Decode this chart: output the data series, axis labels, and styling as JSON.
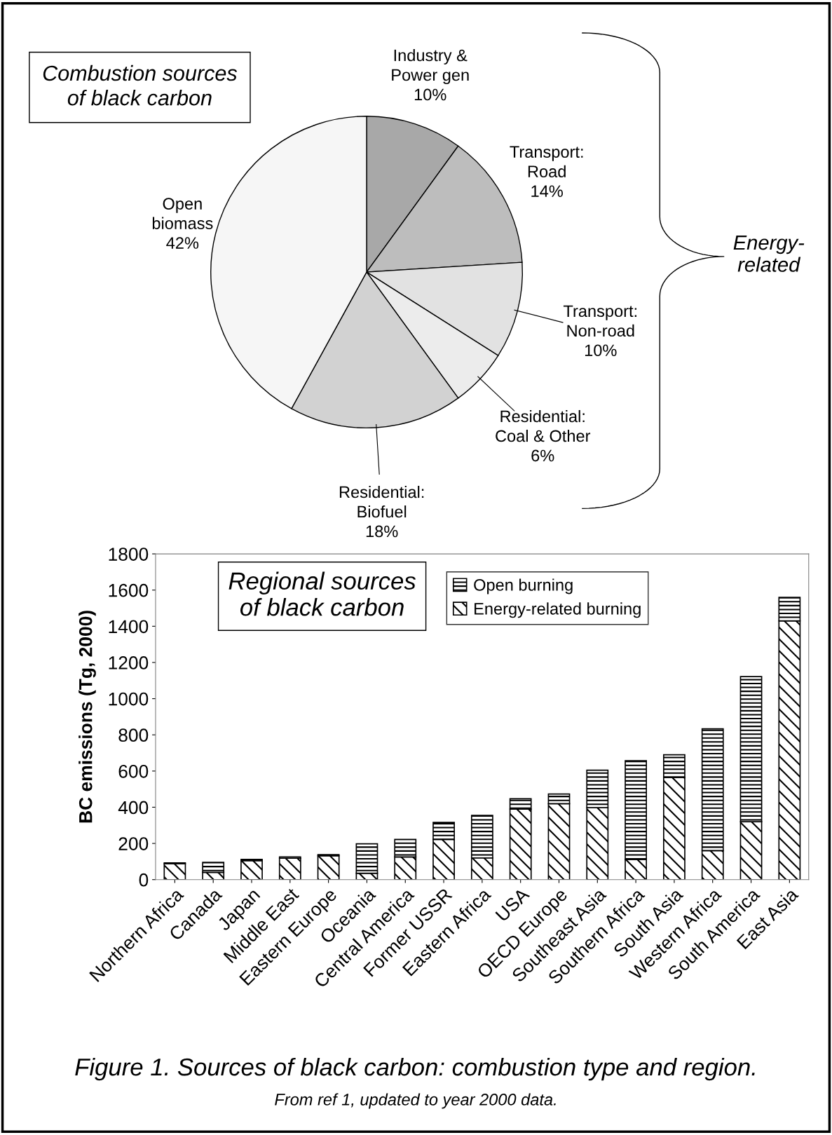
{
  "chart_data": [
    {
      "type": "pie",
      "title": "Combustion sources of black carbon",
      "categories": [
        "Industry &\nPower gen",
        "Transport:\nRoad",
        "Transport:\nNon-road",
        "Residential:\nCoal & Other",
        "Residential:\nBiofuel",
        "Open\nbiomass"
      ],
      "values": [
        10,
        14,
        10,
        6,
        18,
        42
      ],
      "colors": [
        "#a8a8a8",
        "#bdbdbd",
        "#e2e2e2",
        "#ececec",
        "#d2d2d2",
        "#f6f6f6"
      ],
      "value_labels": [
        "10%",
        "14%",
        "10%",
        "6%",
        "18%",
        "42%"
      ],
      "annotations": [
        "Energy-\nrelated"
      ]
    },
    {
      "type": "bar",
      "stacked": true,
      "title": "Regional sources\nof black carbon",
      "categories": [
        "Northern Africa",
        "Canada",
        "Japan",
        "Middle East",
        "Eastern Europe",
        "Oceania",
        "Central America",
        "Former USSR",
        "Eastern Africa",
        "USA",
        "OECD Europe",
        "Southeast Asia",
        "Southern Africa",
        "South Asia",
        "Western Africa",
        "South America",
        "East Asia"
      ],
      "series": [
        {
          "name": "Energy-related burning",
          "color": "#000000",
          "values": [
            88,
            40,
            105,
            118,
            132,
            35,
            125,
            222,
            120,
            390,
            420,
            398,
            112,
            565,
            160,
            320,
            1430
          ]
        },
        {
          "name": "Open burning",
          "color": "#000000",
          "values": [
            5,
            55,
            7,
            7,
            6,
            163,
            97,
            94,
            235,
            57,
            53,
            207,
            545,
            125,
            673,
            802,
            130
          ]
        }
      ],
      "ylabel": "BC emissions (Tg, 2000)",
      "ylim": [
        0,
        1800
      ],
      "yticks": [
        0,
        200,
        400,
        600,
        800,
        1000,
        1200,
        1400,
        1600,
        1800
      ],
      "legend": "top",
      "grid": false,
      "annotations": [
        "Figure 1. Sources of black carbon: combustion type and region.",
        "From ref 1, updated to year 2000 data."
      ]
    }
  ]
}
